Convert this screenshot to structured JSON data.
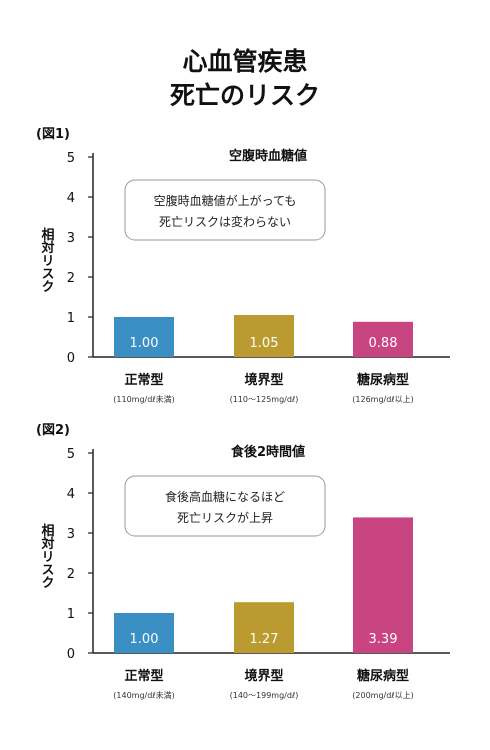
{
  "title_line1": "心血管疾患",
  "title_line2": "死亡のリスク",
  "chart_data": [
    {
      "type": "bar",
      "fig_label": "(図1)",
      "title": "空腹時血糖値",
      "ylabel": "相対リスク",
      "ylim": [
        0,
        5
      ],
      "yticks": [
        0,
        1,
        2,
        3,
        4,
        5
      ],
      "categories": [
        "正常型",
        "境界型",
        "糖尿病型"
      ],
      "sublabels": [
        "(110mg/dℓ未満)",
        "(110〜125mg/dℓ)",
        "(126mg/dℓ以上)"
      ],
      "values": [
        1.0,
        1.05,
        0.88
      ],
      "value_labels": [
        "1.00",
        "1.05",
        "0.88"
      ],
      "colors": [
        "#3a90c4",
        "#bb9b2f",
        "#c94581"
      ],
      "annotation": [
        "空腹時血糖値が上がっても",
        "死亡リスクは変わらない"
      ]
    },
    {
      "type": "bar",
      "fig_label": "(図2)",
      "title": "食後2時間値",
      "ylabel": "相対リスク",
      "ylim": [
        0,
        5
      ],
      "yticks": [
        0,
        1,
        2,
        3,
        4,
        5
      ],
      "categories": [
        "正常型",
        "境界型",
        "糖尿病型"
      ],
      "sublabels": [
        "(140mg/dℓ未満)",
        "(140〜199mg/dℓ)",
        "(200mg/dℓ以上)"
      ],
      "values": [
        1.0,
        1.27,
        3.39
      ],
      "value_labels": [
        "1.00",
        "1.27",
        "3.39"
      ],
      "colors": [
        "#3a90c4",
        "#bb9b2f",
        "#c94581"
      ],
      "annotation": [
        "食後高血糖になるほど",
        "死亡リスクが上昇"
      ]
    }
  ]
}
